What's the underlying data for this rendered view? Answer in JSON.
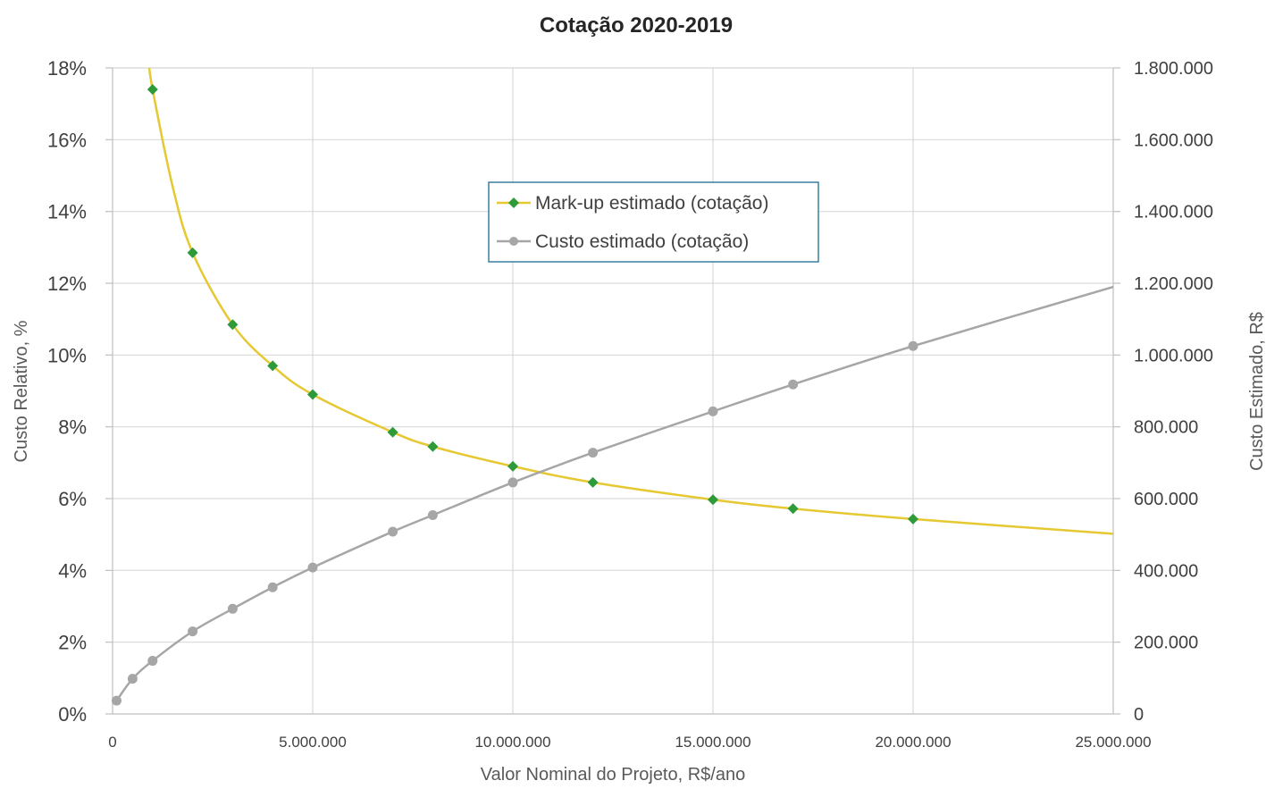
{
  "chart_data": {
    "type": "line",
    "title": "Cotação 2020-2019",
    "xlabel": "Valor Nominal do Projeto, R$/ano",
    "ylabel_left": "Custo Relativo, %",
    "ylabel_right": "Custo Estimado, R$",
    "xlim": [
      0,
      25000000
    ],
    "ylim_left": [
      0,
      18
    ],
    "ylim_right": [
      0,
      1800000
    ],
    "x_ticks": [
      "0",
      "5.000.000",
      "10.000.000",
      "15.000.000",
      "20.000.000",
      "25.000.000"
    ],
    "x_tick_values": [
      0,
      5000000,
      10000000,
      15000000,
      20000000,
      25000000
    ],
    "y_left_ticks": [
      "0%",
      "2%",
      "4%",
      "6%",
      "8%",
      "10%",
      "12%",
      "14%",
      "16%",
      "18%"
    ],
    "y_left_tick_values": [
      0,
      2,
      4,
      6,
      8,
      10,
      12,
      14,
      16,
      18
    ],
    "y_right_ticks": [
      "0",
      "200.000",
      "400.000",
      "600.000",
      "800.000",
      "1.000.000",
      "1.200.000",
      "1.400.000",
      "1.600.000",
      "1.800.000"
    ],
    "y_right_tick_values": [
      0,
      200000,
      400000,
      600000,
      800000,
      1000000,
      1200000,
      1400000,
      1600000,
      1800000
    ],
    "grid": true,
    "legend_position": "center",
    "series": [
      {
        "name": "Mark-up estimado (cotação)",
        "axis": "left",
        "color": "#e5c832",
        "marker_color": "#2e9a3a",
        "marker": "diamond",
        "curve_x": [
          900000,
          1000000,
          1500000,
          2000000,
          3000000,
          4000000,
          5000000,
          7000000,
          8000000,
          10000000,
          12000000,
          15000000,
          17000000,
          20000000,
          25000000
        ],
        "curve_y": [
          18.2,
          17.4,
          14.7,
          12.85,
          10.85,
          9.7,
          8.9,
          7.85,
          7.45,
          6.9,
          6.45,
          5.97,
          5.72,
          5.43,
          5.02
        ],
        "x": [
          1000000,
          2000000,
          3000000,
          4000000,
          5000000,
          7000000,
          8000000,
          10000000,
          12000000,
          15000000,
          17000000,
          20000000
        ],
        "values": [
          17.4,
          12.85,
          10.85,
          9.7,
          8.9,
          7.85,
          7.45,
          6.9,
          6.45,
          5.97,
          5.72,
          5.43
        ]
      },
      {
        "name": "Custo estimado (cotação)",
        "axis": "right",
        "color": "#a6a6a6",
        "marker_color": "#a6a6a6",
        "marker": "circle",
        "curve_x": [
          100000,
          500000,
          1000000,
          2000000,
          3000000,
          4000000,
          5000000,
          7000000,
          8000000,
          10000000,
          12000000,
          15000000,
          17000000,
          20000000,
          25000000
        ],
        "curve_y": [
          37000,
          98000,
          148000,
          230000,
          293000,
          353000,
          408000,
          508000,
          554000,
          645000,
          728000,
          843000,
          918000,
          1025000,
          1190000
        ],
        "x": [
          100000,
          500000,
          1000000,
          2000000,
          3000000,
          4000000,
          5000000,
          7000000,
          8000000,
          10000000,
          12000000,
          15000000,
          17000000,
          20000000
        ],
        "values": [
          37000,
          98000,
          148000,
          230000,
          293000,
          353000,
          408000,
          508000,
          554000,
          645000,
          728000,
          843000,
          918000,
          1025000
        ]
      }
    ]
  }
}
